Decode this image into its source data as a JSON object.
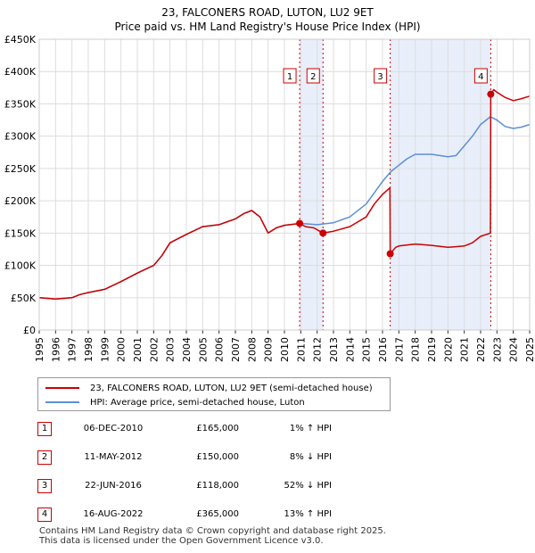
{
  "title_line1": "23, FALCONERS ROAD, LUTON, LU2 9ET",
  "title_line2": "Price paid vs. HM Land Registry's House Price Index (HPI)",
  "colors": {
    "property": "#cc0000",
    "hpi": "#5b8fd6",
    "shade": "#e8eefa",
    "grid": "#dddddd",
    "marker": "#cc0000"
  },
  "legend": {
    "property_label": "23, FALCONERS ROAD, LUTON, LU2 9ET (semi-detached house)",
    "hpi_label": "HPI: Average price, semi-detached house, Luton"
  },
  "transactions": [
    {
      "num": "1",
      "date": "06-DEC-2010",
      "price": "£165,000",
      "hpi": "1% ↑ HPI"
    },
    {
      "num": "2",
      "date": "11-MAY-2012",
      "price": "£150,000",
      "hpi": "8% ↓ HPI"
    },
    {
      "num": "3",
      "date": "22-JUN-2016",
      "price": "£118,000",
      "hpi": "52% ↓ HPI"
    },
    {
      "num": "4",
      "date": "16-AUG-2022",
      "price": "£365,000",
      "hpi": "13% ↑ HPI"
    }
  ],
  "footer": {
    "line1": "Contains HM Land Registry data © Crown copyright and database right 2025.",
    "line2": "This data is licensed under the Open Government Licence v3.0."
  },
  "chart_data": {
    "type": "line",
    "title": "23, FALCONERS ROAD, LUTON, LU2 9ET",
    "subtitle": "Price paid vs. HM Land Registry's House Price Index (HPI)",
    "xlabel": "",
    "ylabel": "",
    "xlim": [
      1995,
      2025
    ],
    "ylim": [
      0,
      450000
    ],
    "x_ticks": [
      "1995",
      "1996",
      "1997",
      "1998",
      "1999",
      "2000",
      "2001",
      "2002",
      "2003",
      "2004",
      "2005",
      "2006",
      "2007",
      "2008",
      "2009",
      "2010",
      "2011",
      "2012",
      "2013",
      "2014",
      "2015",
      "2016",
      "2017",
      "2018",
      "2019",
      "2020",
      "2021",
      "2022",
      "2023",
      "2024",
      "2025"
    ],
    "y_ticks": [
      {
        "value": 0,
        "label": "£0"
      },
      {
        "value": 50000,
        "label": "£50K"
      },
      {
        "value": 100000,
        "label": "£100K"
      },
      {
        "value": 150000,
        "label": "£150K"
      },
      {
        "value": 200000,
        "label": "£200K"
      },
      {
        "value": 250000,
        "label": "£250K"
      },
      {
        "value": 300000,
        "label": "£300K"
      },
      {
        "value": 350000,
        "label": "£350K"
      },
      {
        "value": 400000,
        "label": "£400K"
      },
      {
        "value": 450000,
        "label": "£450K"
      }
    ],
    "grid": true,
    "legend_position": "below",
    "shaded_ranges": [
      [
        2010.93,
        2012.36
      ],
      [
        2016.47,
        2022.62
      ]
    ],
    "sales": [
      {
        "label": "1",
        "x": 2010.93,
        "y": 165000
      },
      {
        "label": "2",
        "x": 2012.36,
        "y": 150000
      },
      {
        "label": "3",
        "x": 2016.47,
        "y": 118000
      },
      {
        "label": "4",
        "x": 2022.62,
        "y": 365000
      }
    ],
    "series": [
      {
        "name": "23, FALCONERS ROAD, LUTON, LU2 9ET (semi-detached house)",
        "color": "#cc0000",
        "x": [
          1995,
          1996,
          1997,
          1997.5,
          1998,
          1999,
          2000,
          2001,
          2002,
          2002.5,
          2003,
          2004,
          2005,
          2006,
          2007,
          2007.5,
          2008,
          2008.5,
          2009,
          2009.5,
          2010,
          2010.93,
          2011.3,
          2011.8,
          2012.36,
          2013,
          2014,
          2015,
          2015.5,
          2016,
          2016.45,
          2016.47,
          2016.8,
          2017,
          2018,
          2019,
          2020,
          2021,
          2021.5,
          2022,
          2022.6,
          2022.62,
          2022.8,
          2023,
          2023.5,
          2024,
          2024.5,
          2025
        ],
        "y": [
          50000,
          48000,
          50000,
          55000,
          58000,
          63000,
          75000,
          88000,
          100000,
          115000,
          135000,
          148000,
          160000,
          163000,
          172000,
          180000,
          185000,
          175000,
          150000,
          158000,
          162000,
          165000,
          160000,
          158000,
          150000,
          153000,
          160000,
          175000,
          195000,
          210000,
          220000,
          118000,
          128000,
          130000,
          133000,
          131000,
          128000,
          130000,
          135000,
          145000,
          150000,
          365000,
          372000,
          368000,
          360000,
          355000,
          358000,
          362000
        ]
      },
      {
        "name": "HPI: Average price, semi-detached house, Luton",
        "color": "#5b8fd6",
        "x": [
          1995,
          1996,
          1997,
          1997.5,
          1998,
          1999,
          2000,
          2001,
          2002,
          2002.5,
          2003,
          2004,
          2005,
          2006,
          2007,
          2007.5,
          2008,
          2008.5,
          2009,
          2009.5,
          2010,
          2011,
          2012,
          2013,
          2014,
          2015,
          2016,
          2016.5,
          2017,
          2017.5,
          2018,
          2019,
          2020,
          2020.5,
          2021,
          2021.5,
          2022,
          2022.6,
          2023,
          2023.5,
          2024,
          2024.5,
          2025
        ],
        "y": [
          50000,
          48000,
          50000,
          55000,
          58000,
          63000,
          75000,
          88000,
          100000,
          115000,
          135000,
          148000,
          160000,
          163000,
          172000,
          180000,
          185000,
          175000,
          150000,
          158000,
          162000,
          165000,
          163000,
          166000,
          175000,
          195000,
          230000,
          245000,
          255000,
          265000,
          272000,
          272000,
          268000,
          270000,
          285000,
          300000,
          318000,
          330000,
          325000,
          315000,
          312000,
          314000,
          318000
        ]
      }
    ]
  }
}
